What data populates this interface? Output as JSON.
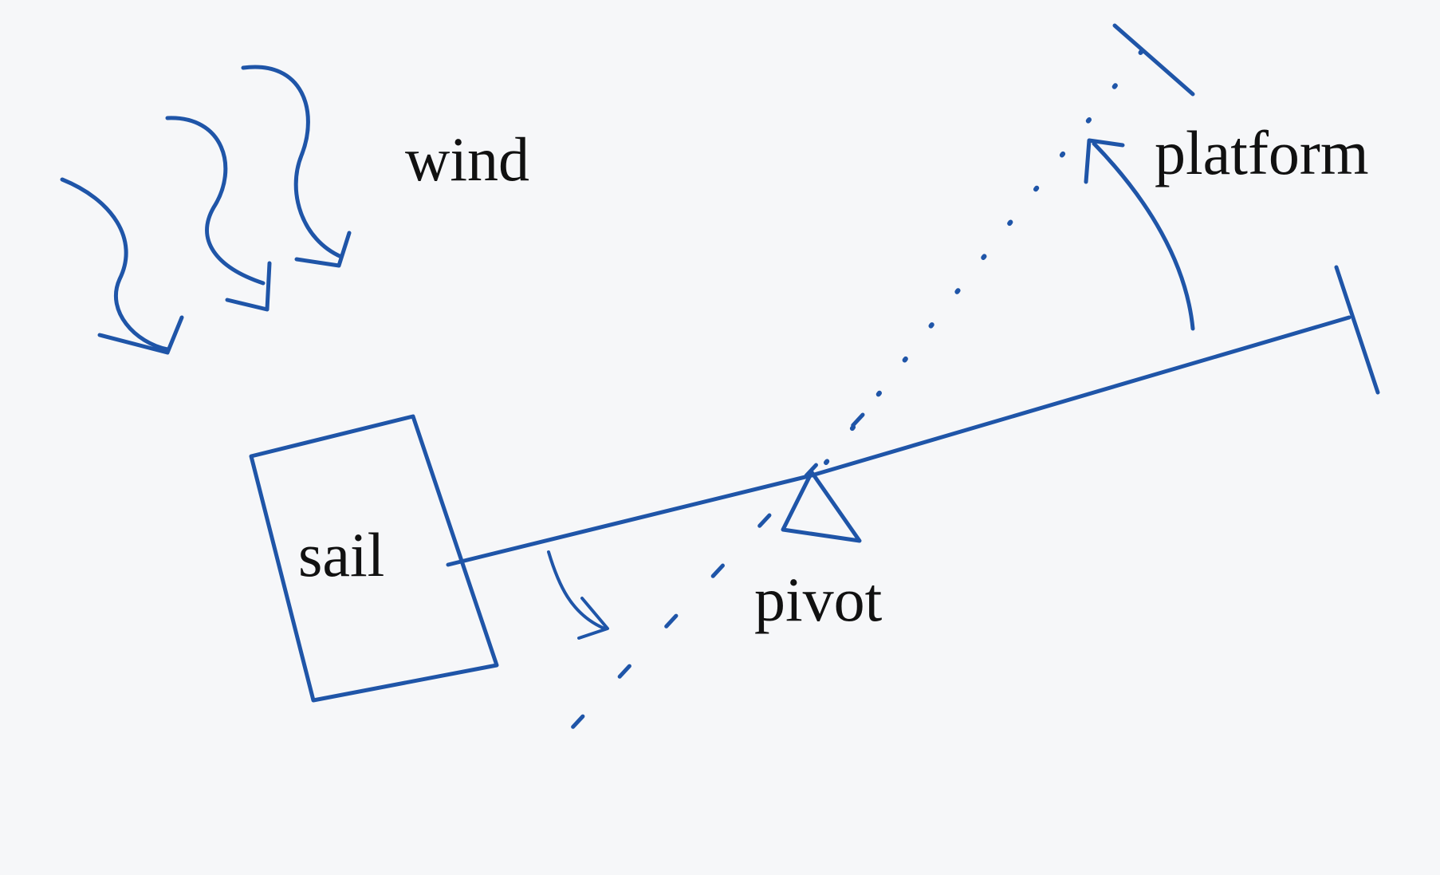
{
  "labels": {
    "wind": "wind",
    "platform": "platform",
    "sail": "sail",
    "pivot": "pivot"
  },
  "colors": {
    "ink": "#1f55a8",
    "text": "#111111",
    "paper": "#f6f7f9"
  }
}
